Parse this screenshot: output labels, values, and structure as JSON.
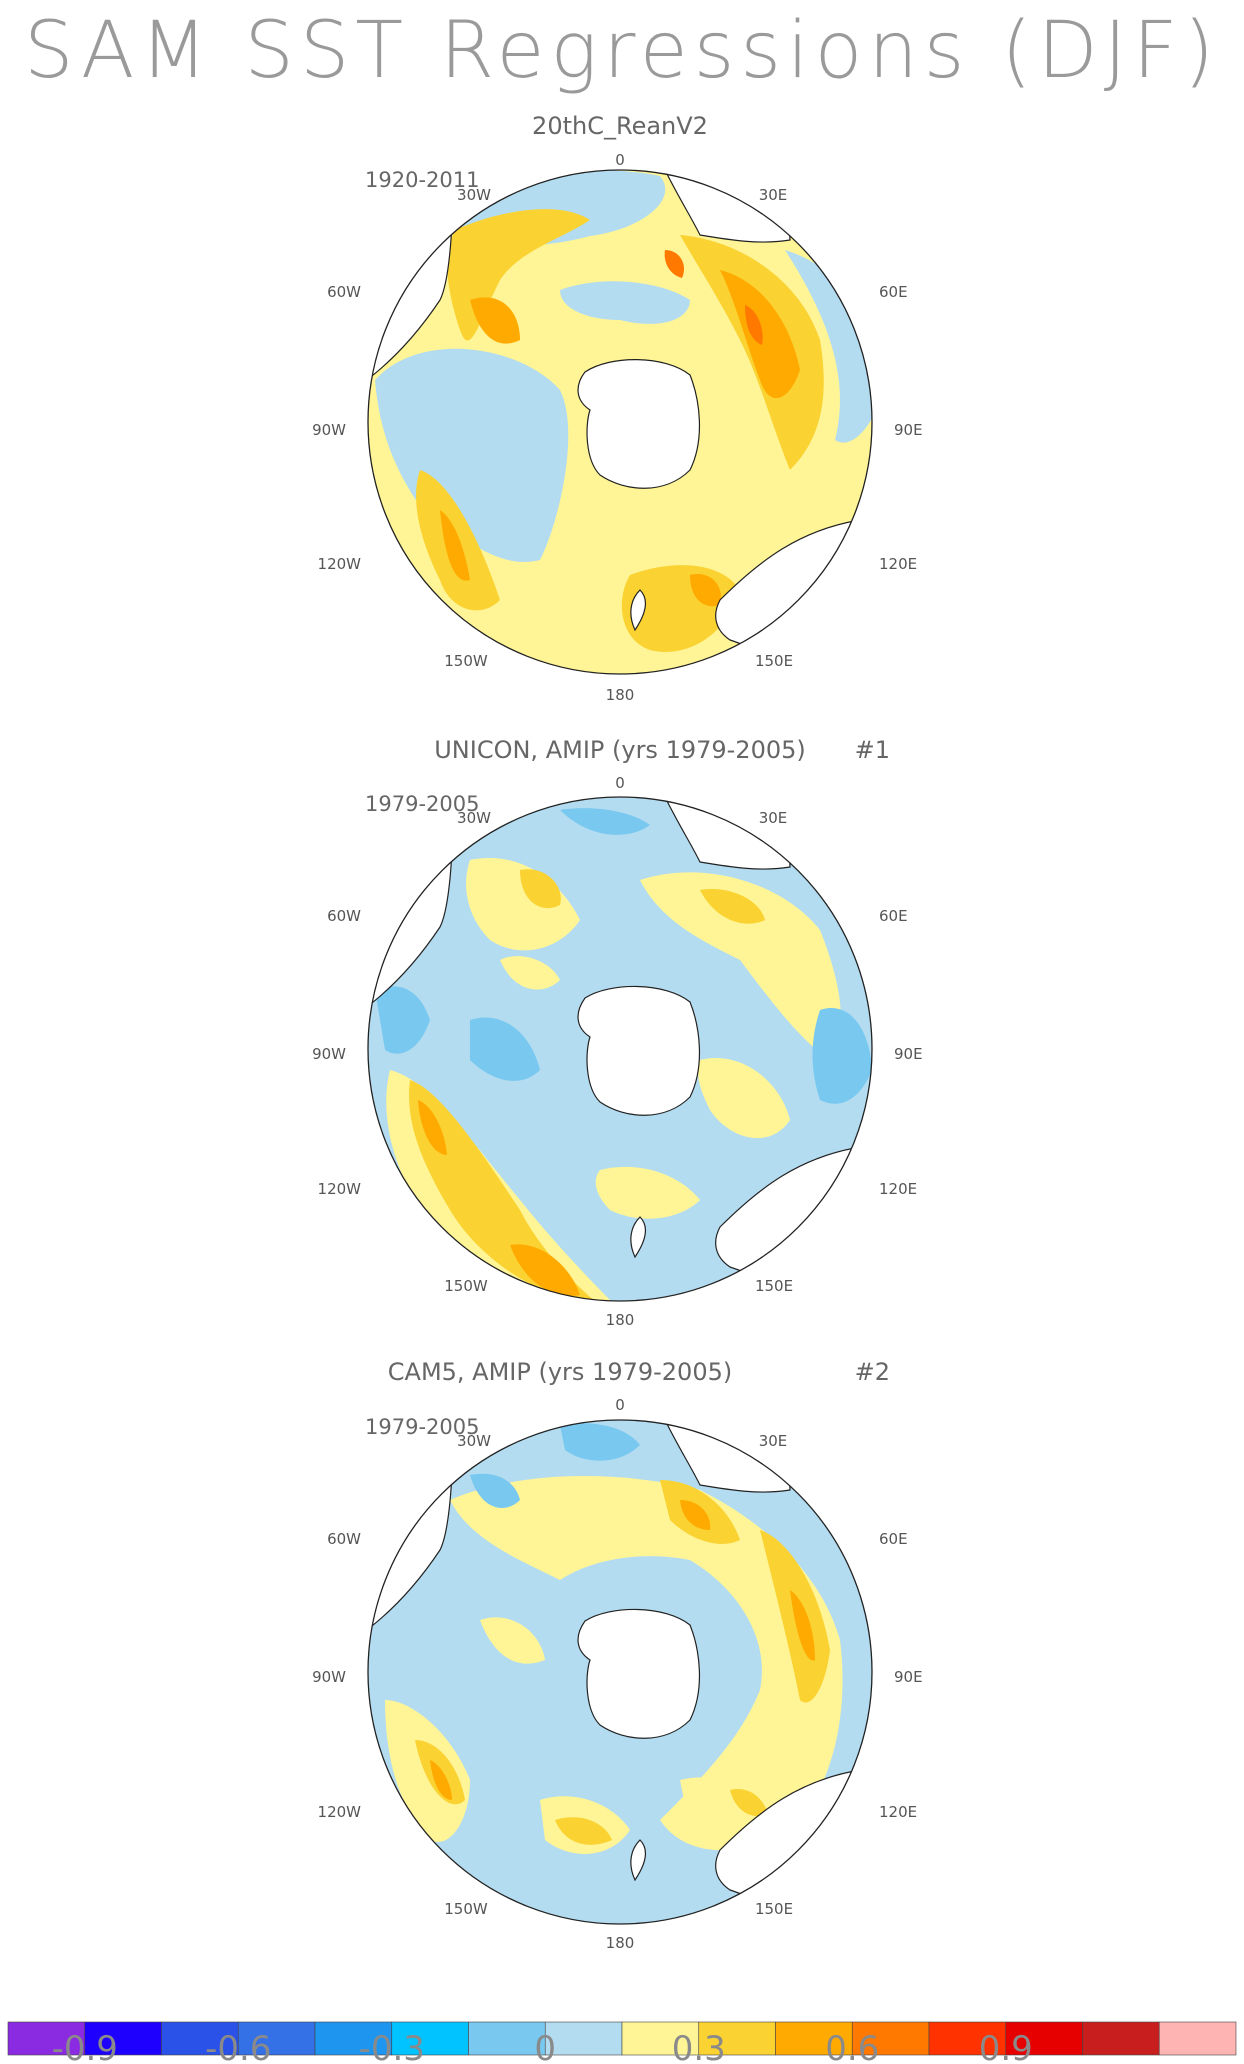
{
  "figure": {
    "title": "SAM SST Regressions (DJF)"
  },
  "panels": [
    {
      "title": "20thC_ReanV2",
      "number": "",
      "period": "1920-2011",
      "lon_labels": [
        "0",
        "30E",
        "60E",
        "90E",
        "120E",
        "150E",
        "180",
        "150W",
        "120W",
        "90W",
        "60W",
        "30W"
      ]
    },
    {
      "title": "UNICON, AMIP (yrs 1979-2005)",
      "number": "#1",
      "period": "1979-2005",
      "lon_labels": [
        "0",
        "30E",
        "60E",
        "90E",
        "120E",
        "150E",
        "180",
        "150W",
        "120W",
        "90W",
        "60W",
        "30W"
      ]
    },
    {
      "title": "CAM5, AMIP (yrs 1979-2005)",
      "number": "#2",
      "period": "1979-2005",
      "lon_labels": [
        "0",
        "30E",
        "60E",
        "90E",
        "120E",
        "150E",
        "180",
        "150W",
        "120W",
        "90W",
        "60W",
        "30W"
      ]
    }
  ],
  "colorbar": {
    "colors": [
      "#8a2be2",
      "#1e00ff",
      "#2a52e8",
      "#3470e6",
      "#1e96f0",
      "#00c3ff",
      "#78c8f0",
      "#b4dcf0",
      "#fff596",
      "#fad232",
      "#ffaa00",
      "#ff7800",
      "#ff3200",
      "#e60000",
      "#c81e1e",
      "#ffb4b4"
    ],
    "tick_labels": [
      "-0.9",
      "-0.6",
      "-0.3",
      "0",
      "0.3",
      "0.6",
      "0.9"
    ]
  },
  "colors": {
    "positive_weak": "#fff596",
    "positive_mid": "#fad232",
    "positive_strong": "#ffaa00",
    "positive_max": "#ff7800",
    "negative_weak": "#b4dcf0",
    "negative_mid": "#78c8f0",
    "land": "#ffffff"
  }
}
